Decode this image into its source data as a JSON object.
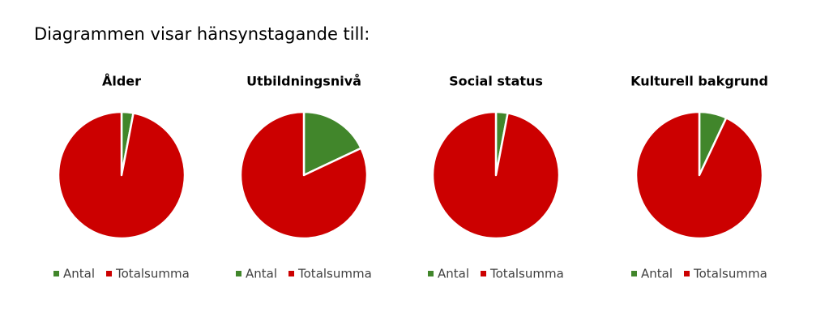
{
  "title": "Diagrammen visar hänsynstagande till:",
  "chart_data": [
    {
      "type": "pie",
      "title": "Ålder",
      "categories": [
        "Antal",
        "Totalsumma"
      ],
      "colors": [
        "#41862b",
        "#cc0000"
      ],
      "values": [
        3,
        97
      ]
    },
    {
      "type": "pie",
      "title": "Utbildningsnivå",
      "categories": [
        "Antal",
        "Totalsumma"
      ],
      "colors": [
        "#41862b",
        "#cc0000"
      ],
      "values": [
        18,
        82
      ]
    },
    {
      "type": "pie",
      "title": "Social status",
      "categories": [
        "Antal",
        "Totalsumma"
      ],
      "colors": [
        "#41862b",
        "#cc0000"
      ],
      "values": [
        3,
        97
      ]
    },
    {
      "type": "pie",
      "title": "Kulturell bakgrund",
      "categories": [
        "Antal",
        "Totalsumma"
      ],
      "colors": [
        "#41862b",
        "#cc0000"
      ],
      "values": [
        7,
        93
      ]
    }
  ]
}
